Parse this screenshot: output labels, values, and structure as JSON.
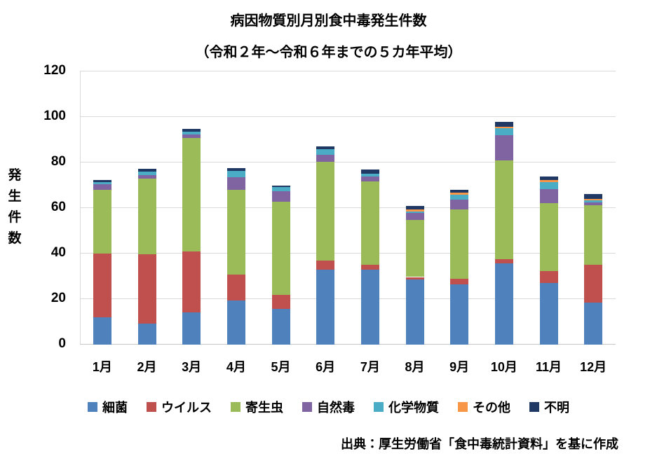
{
  "title_line1": "病因物質別月別食中毒発生件数",
  "title_line2": "（令和２年～令和６年までの５カ年平均）",
  "y_axis_title": "発生件数",
  "source_note": "出典：厚生労働省「食中毒統計資料」を基に作成",
  "colors": {
    "bacteria": "#4F81BD",
    "virus": "#C0504D",
    "parasite": "#9BBB59",
    "natural_toxin": "#8064A2",
    "chemical": "#4BACC6",
    "other": "#F79646",
    "unknown": "#1F3864",
    "gridline": "#D9D9D9",
    "text": "#000000"
  },
  "chart_data": {
    "type": "bar",
    "stacked": true,
    "title": "病因物質別月別食中毒発生件数（令和２年～令和６年までの５カ年平均）",
    "xlabel": "",
    "ylabel": "発生件数",
    "ylim": [
      0,
      120
    ],
    "ytick_interval": 20,
    "grid": true,
    "legend_position": "bottom",
    "categories": [
      "1月",
      "2月",
      "3月",
      "4月",
      "5月",
      "6月",
      "7月",
      "8月",
      "9月",
      "10月",
      "11月",
      "12月"
    ],
    "series": [
      {
        "name": "細菌",
        "color": "#4F81BD",
        "values": [
          12.0,
          9.2,
          14.3,
          19.5,
          15.8,
          33.0,
          32.8,
          28.6,
          26.4,
          35.8,
          27.0,
          18.5
        ]
      },
      {
        "name": "ウイルス",
        "color": "#C0504D",
        "values": [
          28.0,
          30.5,
          26.7,
          11.3,
          5.9,
          3.9,
          2.3,
          1.1,
          2.5,
          1.6,
          5.4,
          16.6
        ]
      },
      {
        "name": "寄生虫",
        "color": "#9BBB59",
        "values": [
          28.0,
          33.1,
          49.8,
          37.2,
          41.1,
          43.3,
          36.7,
          25.0,
          30.4,
          43.4,
          29.9,
          26.2
        ]
      },
      {
        "name": "自然毒",
        "color": "#8064A2",
        "values": [
          2.4,
          1.8,
          1.5,
          5.6,
          4.6,
          3.1,
          2.0,
          3.0,
          4.4,
          11.2,
          5.9,
          1.3
        ]
      },
      {
        "name": "化学物質",
        "color": "#4BACC6",
        "values": [
          0.9,
          1.3,
          1.2,
          2.6,
          1.8,
          2.4,
          1.3,
          0.9,
          2.3,
          3.0,
          3.3,
          0.8
        ]
      },
      {
        "name": "その他",
        "color": "#F79646",
        "values": [
          0.0,
          0.0,
          0.0,
          0.0,
          0.0,
          0.0,
          0.0,
          0.9,
          0.7,
          0.8,
          0.9,
          0.7
        ]
      },
      {
        "name": "不明",
        "color": "#1F3864",
        "values": [
          0.9,
          1.3,
          1.3,
          1.2,
          0.7,
          1.5,
          1.7,
          1.3,
          1.4,
          2.0,
          1.5,
          2.1
        ]
      }
    ]
  }
}
